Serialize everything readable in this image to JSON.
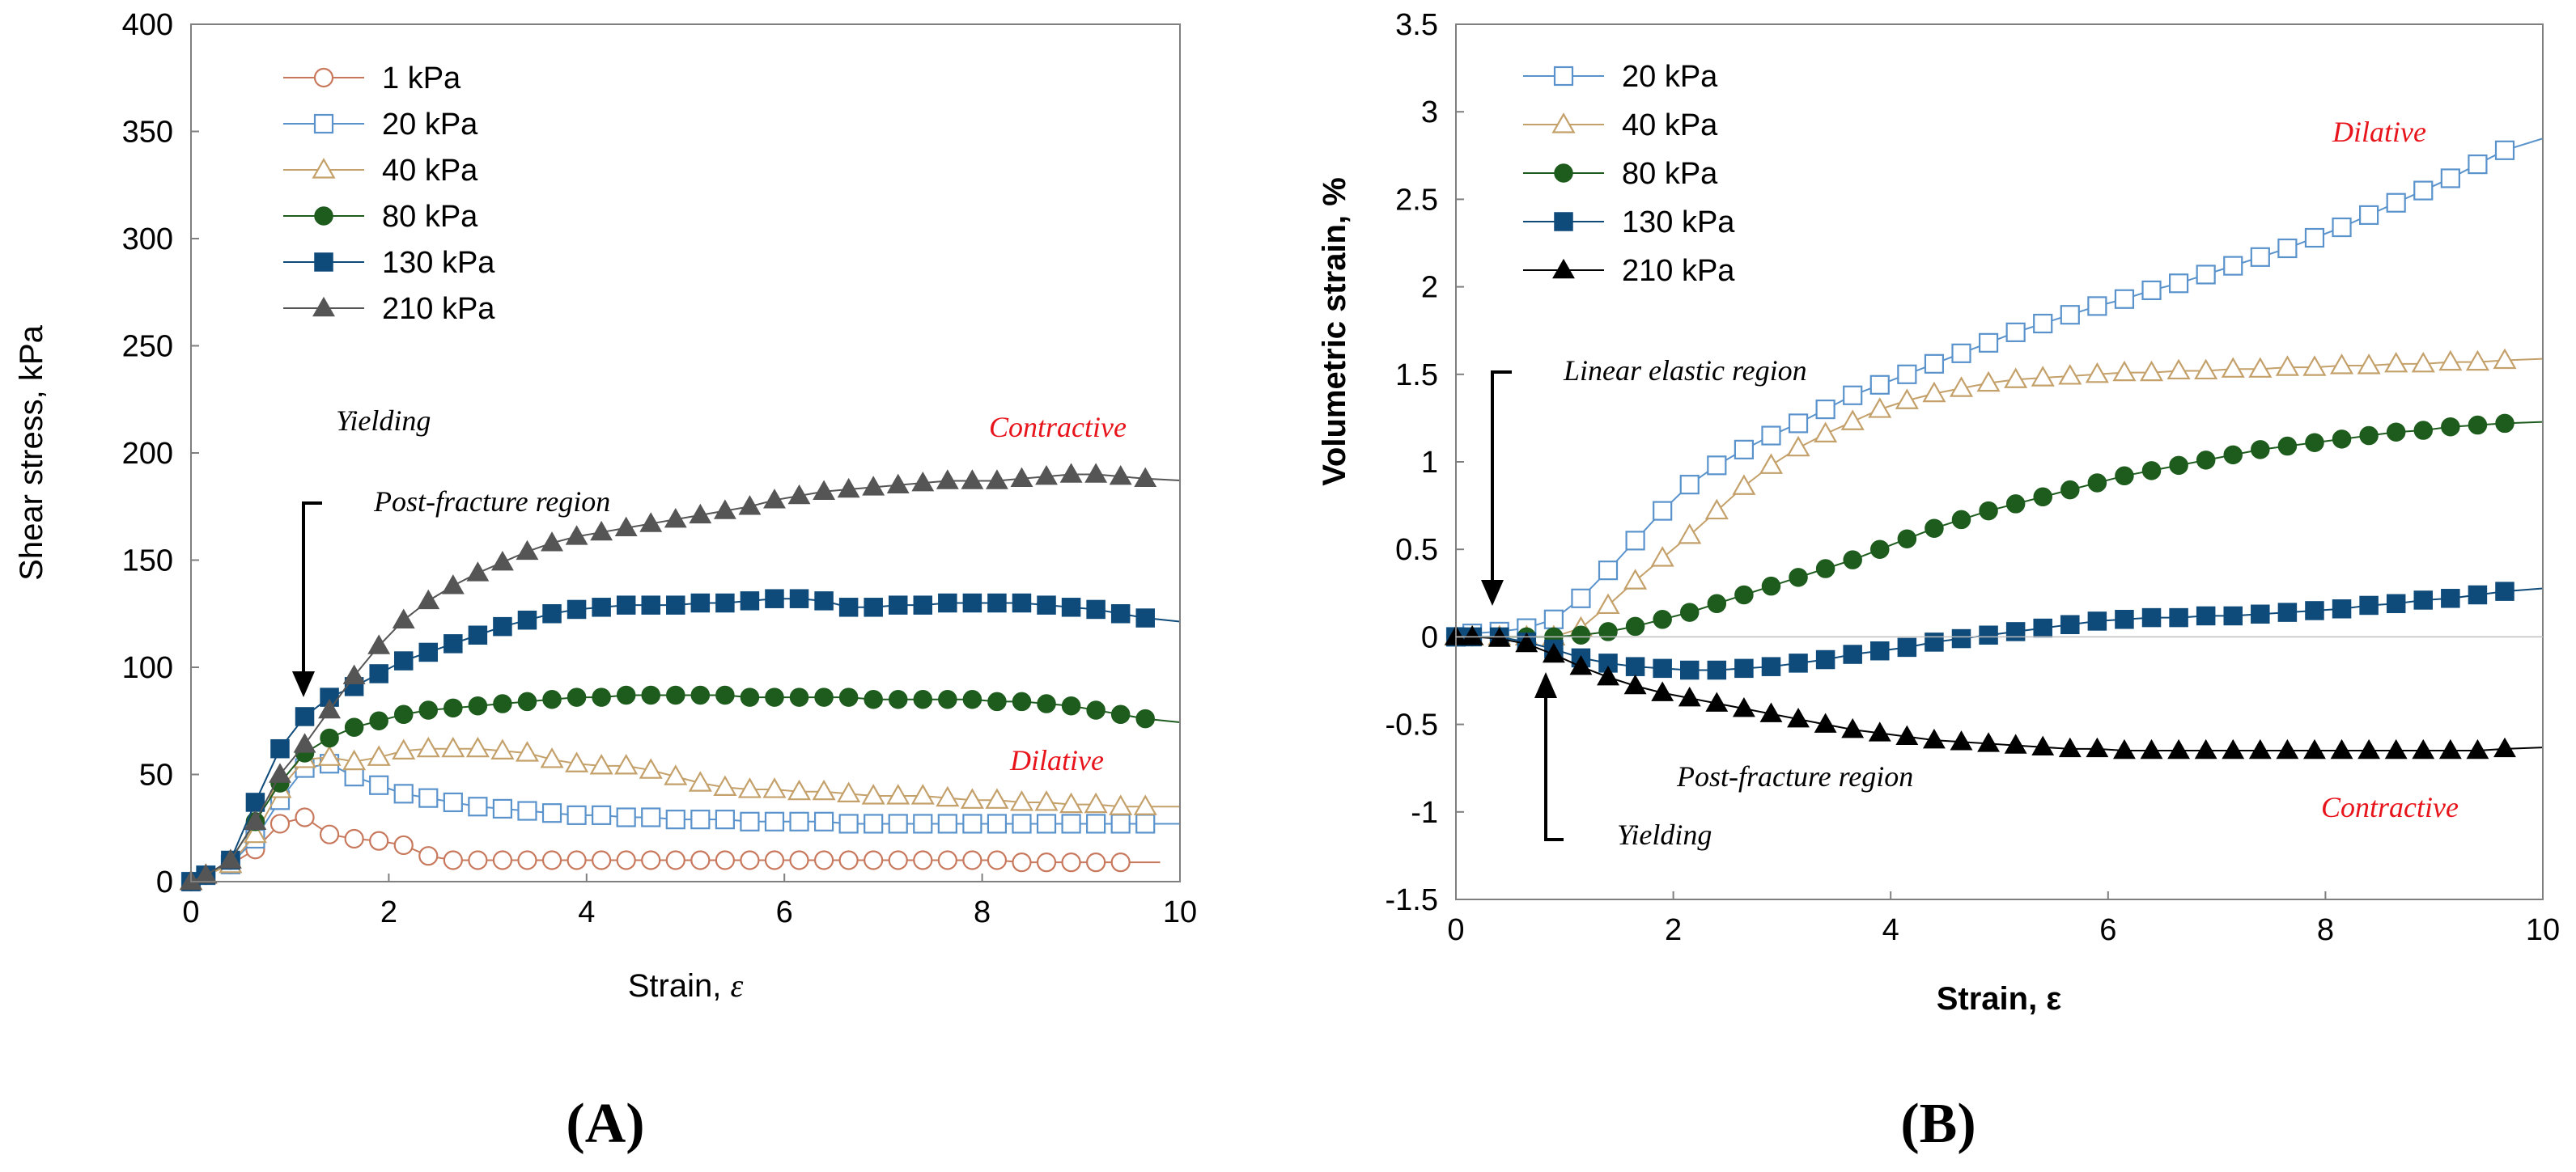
{
  "chart_data": [
    {
      "type": "line",
      "panel_label": "(A)",
      "title": "",
      "xlabel_prefix": "Strain, ",
      "xlabel_symbol": "ε",
      "ylabel": "Shear stress, kPa",
      "xlim": [
        0,
        10
      ],
      "ylim": [
        0,
        400
      ],
      "xticks": [
        0,
        2,
        4,
        6,
        8,
        10
      ],
      "yticks": [
        0,
        50,
        100,
        150,
        200,
        250,
        300,
        350,
        400
      ],
      "xtick_labels": [
        "0",
        "2",
        "4",
        "6",
        "8",
        "10"
      ],
      "ytick_labels": [
        "0",
        "50",
        "100",
        "150",
        "200",
        "250",
        "300",
        "350",
        "400"
      ],
      "grid": false,
      "legend_position": "top-left",
      "annotations": [
        {
          "text": "Yielding",
          "color": "#000000"
        },
        {
          "text": "Post-fracture region",
          "color": "#000000"
        },
        {
          "text": "Contractive",
          "color": "#e8141b"
        },
        {
          "text": "Dilative",
          "color": "#e8141b"
        }
      ],
      "series": [
        {
          "name": "1 kPa",
          "marker": "circle-open",
          "color": "#c8785c",
          "x": [
            0,
            0.15,
            0.4,
            0.65,
            0.9,
            1.15,
            1.4,
            1.65,
            1.9,
            2.15,
            2.4,
            2.65,
            2.9,
            3.15,
            3.4,
            3.65,
            3.9,
            4.15,
            4.4,
            4.65,
            4.9,
            5.15,
            5.4,
            5.65,
            5.9,
            6.15,
            6.4,
            6.65,
            6.9,
            7.15,
            7.4,
            7.65,
            7.9,
            8.15,
            8.4,
            8.65,
            8.9,
            9.15,
            9.4
          ],
          "y": [
            0,
            3,
            8,
            15,
            27,
            30,
            22,
            20,
            19,
            17,
            12,
            10,
            10,
            10,
            10,
            10,
            10,
            10,
            10,
            10,
            10,
            10,
            10,
            10,
            10,
            10,
            10,
            10,
            10,
            10,
            10,
            10,
            10,
            10,
            9,
            9,
            9,
            9,
            9
          ]
        },
        {
          "name": "20 kPa",
          "marker": "square-open",
          "color": "#5a93cc",
          "x": [
            0,
            0.15,
            0.4,
            0.65,
            0.9,
            1.15,
            1.4,
            1.65,
            1.9,
            2.15,
            2.4,
            2.65,
            2.9,
            3.15,
            3.4,
            3.65,
            3.9,
            4.15,
            4.4,
            4.65,
            4.9,
            5.15,
            5.4,
            5.65,
            5.9,
            6.15,
            6.4,
            6.65,
            6.9,
            7.15,
            7.4,
            7.65,
            7.9,
            8.15,
            8.4,
            8.65,
            8.9,
            9.15,
            9.4,
            9.65
          ],
          "y": [
            0,
            3,
            8,
            20,
            38,
            53,
            55,
            49,
            45,
            41,
            39,
            37,
            35,
            34,
            33,
            32,
            31,
            31,
            30,
            30,
            29,
            29,
            29,
            28,
            28,
            28,
            28,
            27,
            27,
            27,
            27,
            27,
            27,
            27,
            27,
            27,
            27,
            27,
            27,
            27
          ]
        },
        {
          "name": "40 kPa",
          "marker": "triangle-open",
          "color": "#c4a06a",
          "x": [
            0,
            0.15,
            0.4,
            0.65,
            0.9,
            1.15,
            1.4,
            1.65,
            1.9,
            2.15,
            2.4,
            2.65,
            2.9,
            3.15,
            3.4,
            3.65,
            3.9,
            4.15,
            4.4,
            4.65,
            4.9,
            5.15,
            5.4,
            5.65,
            5.9,
            6.15,
            6.4,
            6.65,
            6.9,
            7.15,
            7.4,
            7.65,
            7.9,
            8.15,
            8.4,
            8.65,
            8.9,
            9.15,
            9.4,
            9.65
          ],
          "y": [
            0,
            3,
            8,
            22,
            43,
            57,
            58,
            56,
            58,
            61,
            62,
            62,
            62,
            61,
            60,
            57,
            55,
            54,
            54,
            52,
            49,
            46,
            44,
            43,
            43,
            42,
            42,
            41,
            40,
            40,
            40,
            39,
            38,
            38,
            37,
            37,
            36,
            36,
            35,
            35
          ]
        },
        {
          "name": "80 kPa",
          "marker": "circle-filled",
          "color": "#1e5c1e",
          "x": [
            0,
            0.15,
            0.4,
            0.65,
            0.9,
            1.15,
            1.4,
            1.65,
            1.9,
            2.15,
            2.4,
            2.65,
            2.9,
            3.15,
            3.4,
            3.65,
            3.9,
            4.15,
            4.4,
            4.65,
            4.9,
            5.15,
            5.4,
            5.65,
            5.9,
            6.15,
            6.4,
            6.65,
            6.9,
            7.15,
            7.4,
            7.65,
            7.9,
            8.15,
            8.4,
            8.65,
            8.9,
            9.15,
            9.4,
            9.65
          ],
          "y": [
            0,
            3,
            10,
            28,
            46,
            60,
            67,
            72,
            75,
            78,
            80,
            81,
            82,
            83,
            84,
            85,
            86,
            86,
            87,
            87,
            87,
            87,
            87,
            86,
            86,
            86,
            86,
            86,
            85,
            85,
            85,
            85,
            85,
            84,
            84,
            83,
            82,
            80,
            78,
            76
          ]
        },
        {
          "name": "130 kPa",
          "marker": "square-filled",
          "color": "#0e4a7a",
          "x": [
            0,
            0.15,
            0.4,
            0.65,
            0.9,
            1.15,
            1.4,
            1.65,
            1.9,
            2.15,
            2.4,
            2.65,
            2.9,
            3.15,
            3.4,
            3.65,
            3.9,
            4.15,
            4.4,
            4.65,
            4.9,
            5.15,
            5.4,
            5.65,
            5.9,
            6.15,
            6.4,
            6.65,
            6.9,
            7.15,
            7.4,
            7.65,
            7.9,
            8.15,
            8.4,
            8.65,
            8.9,
            9.15,
            9.4,
            9.65
          ],
          "y": [
            0,
            3,
            10,
            37,
            62,
            77,
            86,
            91,
            97,
            103,
            107,
            111,
            115,
            119,
            122,
            125,
            127,
            128,
            129,
            129,
            129,
            130,
            130,
            131,
            132,
            132,
            131,
            128,
            128,
            129,
            129,
            130,
            130,
            130,
            130,
            129,
            128,
            127,
            125,
            123
          ]
        },
        {
          "name": "210 kPa",
          "marker": "triangle-filled",
          "color": "#555555",
          "x": [
            0,
            0.15,
            0.4,
            0.65,
            0.9,
            1.15,
            1.4,
            1.65,
            1.9,
            2.15,
            2.4,
            2.65,
            2.9,
            3.15,
            3.4,
            3.65,
            3.9,
            4.15,
            4.4,
            4.65,
            4.9,
            5.15,
            5.4,
            5.65,
            5.9,
            6.15,
            6.4,
            6.65,
            6.9,
            7.15,
            7.4,
            7.65,
            7.9,
            8.15,
            8.4,
            8.65,
            8.9,
            9.15,
            9.4,
            9.65
          ],
          "y": [
            0,
            3,
            10,
            28,
            50,
            64,
            80,
            96,
            110,
            122,
            131,
            138,
            144,
            149,
            154,
            158,
            161,
            163,
            165,
            167,
            169,
            171,
            173,
            175,
            178,
            180,
            182,
            183,
            184,
            185,
            186,
            187,
            187,
            187,
            188,
            189,
            190,
            190,
            189,
            188
          ]
        }
      ]
    },
    {
      "type": "line",
      "panel_label": "(B)",
      "title": "",
      "xlabel": "Strain, ε",
      "ylabel": "Volumetric strain, %",
      "xlim": [
        0,
        10
      ],
      "ylim": [
        -1.5,
        3.5
      ],
      "xticks": [
        0,
        2,
        4,
        6,
        8,
        10
      ],
      "yticks": [
        -1.5,
        -1,
        -0.5,
        0,
        0.5,
        1,
        1.5,
        2,
        2.5,
        3,
        3.5
      ],
      "xtick_labels": [
        "0",
        "2",
        "4",
        "6",
        "8",
        "10"
      ],
      "ytick_labels": [
        "-1.5",
        "-1",
        "-0.5",
        "0",
        "0.5",
        "1",
        "1.5",
        "2",
        "2.5",
        "3",
        "3.5"
      ],
      "grid": false,
      "legend_position": "top-left",
      "annotations": [
        {
          "text": "Linear elastic region",
          "color": "#000000"
        },
        {
          "text": "Dilative",
          "color": "#e8141b"
        },
        {
          "text": "Post-fracture region",
          "color": "#000000"
        },
        {
          "text": "Yielding",
          "color": "#000000"
        },
        {
          "text": "Contractive",
          "color": "#e8141b"
        }
      ],
      "series": [
        {
          "name": "20 kPa",
          "marker": "square-open",
          "color": "#5a93cc",
          "x": [
            0,
            0.15,
            0.4,
            0.65,
            0.9,
            1.15,
            1.4,
            1.65,
            1.9,
            2.15,
            2.4,
            2.65,
            2.9,
            3.15,
            3.4,
            3.65,
            3.9,
            4.15,
            4.4,
            4.65,
            4.9,
            5.15,
            5.4,
            5.65,
            5.9,
            6.15,
            6.4,
            6.65,
            6.9,
            7.15,
            7.4,
            7.65,
            7.9,
            8.15,
            8.4,
            8.65,
            8.9,
            9.15,
            9.4,
            9.65
          ],
          "y": [
            0,
            0.02,
            0.03,
            0.05,
            0.1,
            0.22,
            0.38,
            0.55,
            0.72,
            0.87,
            0.98,
            1.07,
            1.15,
            1.22,
            1.3,
            1.38,
            1.44,
            1.5,
            1.56,
            1.62,
            1.68,
            1.74,
            1.79,
            1.84,
            1.89,
            1.93,
            1.98,
            2.02,
            2.07,
            2.12,
            2.17,
            2.22,
            2.28,
            2.34,
            2.41,
            2.48,
            2.55,
            2.62,
            2.7,
            2.78
          ]
        },
        {
          "name": "40 kPa",
          "marker": "triangle-open",
          "color": "#c4a06a",
          "x": [
            0,
            0.15,
            0.4,
            0.65,
            0.9,
            1.15,
            1.4,
            1.65,
            1.9,
            2.15,
            2.4,
            2.65,
            2.9,
            3.15,
            3.4,
            3.65,
            3.9,
            4.15,
            4.4,
            4.65,
            4.9,
            5.15,
            5.4,
            5.65,
            5.9,
            6.15,
            6.4,
            6.65,
            6.9,
            7.15,
            7.4,
            7.65,
            7.9,
            8.15,
            8.4,
            8.65,
            8.9,
            9.15,
            9.4,
            9.65
          ],
          "y": [
            0,
            0.0,
            0.0,
            0.0,
            0.0,
            0.05,
            0.18,
            0.32,
            0.45,
            0.58,
            0.72,
            0.86,
            0.98,
            1.08,
            1.16,
            1.23,
            1.3,
            1.35,
            1.39,
            1.42,
            1.45,
            1.47,
            1.48,
            1.49,
            1.5,
            1.51,
            1.51,
            1.52,
            1.52,
            1.53,
            1.53,
            1.54,
            1.54,
            1.55,
            1.55,
            1.56,
            1.56,
            1.57,
            1.57,
            1.58
          ]
        },
        {
          "name": "80 kPa",
          "marker": "circle-filled",
          "color": "#1e5c1e",
          "x": [
            0,
            0.15,
            0.4,
            0.65,
            0.9,
            1.15,
            1.4,
            1.65,
            1.9,
            2.15,
            2.4,
            2.65,
            2.9,
            3.15,
            3.4,
            3.65,
            3.9,
            4.15,
            4.4,
            4.65,
            4.9,
            5.15,
            5.4,
            5.65,
            5.9,
            6.15,
            6.4,
            6.65,
            6.9,
            7.15,
            7.4,
            7.65,
            7.9,
            8.15,
            8.4,
            8.65,
            8.9,
            9.15,
            9.4,
            9.65
          ],
          "y": [
            0,
            0.0,
            0.0,
            0.0,
            0.0,
            0.01,
            0.03,
            0.06,
            0.1,
            0.14,
            0.19,
            0.24,
            0.29,
            0.34,
            0.39,
            0.44,
            0.5,
            0.56,
            0.62,
            0.67,
            0.72,
            0.76,
            0.8,
            0.84,
            0.88,
            0.92,
            0.95,
            0.98,
            1.01,
            1.04,
            1.07,
            1.09,
            1.11,
            1.13,
            1.15,
            1.17,
            1.18,
            1.2,
            1.21,
            1.22
          ]
        },
        {
          "name": "130 kPa",
          "marker": "square-filled",
          "color": "#0e4a7a",
          "x": [
            0,
            0.15,
            0.4,
            0.65,
            0.9,
            1.15,
            1.4,
            1.65,
            1.9,
            2.15,
            2.4,
            2.65,
            2.9,
            3.15,
            3.4,
            3.65,
            3.9,
            4.15,
            4.4,
            4.65,
            4.9,
            5.15,
            5.4,
            5.65,
            5.9,
            6.15,
            6.4,
            6.65,
            6.9,
            7.15,
            7.4,
            7.65,
            7.9,
            8.15,
            8.4,
            8.65,
            8.9,
            9.15,
            9.4,
            9.65
          ],
          "y": [
            0,
            0.0,
            0.0,
            -0.03,
            -0.07,
            -0.12,
            -0.15,
            -0.17,
            -0.18,
            -0.19,
            -0.19,
            -0.18,
            -0.17,
            -0.15,
            -0.13,
            -0.1,
            -0.08,
            -0.06,
            -0.03,
            -0.01,
            0.01,
            0.03,
            0.05,
            0.07,
            0.09,
            0.1,
            0.11,
            0.11,
            0.12,
            0.12,
            0.13,
            0.14,
            0.15,
            0.16,
            0.18,
            0.19,
            0.21,
            0.22,
            0.24,
            0.26
          ]
        },
        {
          "name": "210 kPa",
          "marker": "triangle-filled",
          "color": "#000000",
          "x": [
            0,
            0.15,
            0.4,
            0.65,
            0.9,
            1.15,
            1.4,
            1.65,
            1.9,
            2.15,
            2.4,
            2.65,
            2.9,
            3.15,
            3.4,
            3.65,
            3.9,
            4.15,
            4.4,
            4.65,
            4.9,
            5.15,
            5.4,
            5.65,
            5.9,
            6.15,
            6.4,
            6.65,
            6.9,
            7.15,
            7.4,
            7.65,
            7.9,
            8.15,
            8.4,
            8.65,
            8.9,
            9.15,
            9.4,
            9.65
          ],
          "y": [
            0,
            0.0,
            -0.01,
            -0.04,
            -0.1,
            -0.17,
            -0.23,
            -0.28,
            -0.32,
            -0.35,
            -0.38,
            -0.41,
            -0.44,
            -0.47,
            -0.5,
            -0.53,
            -0.55,
            -0.57,
            -0.59,
            -0.6,
            -0.61,
            -0.62,
            -0.63,
            -0.64,
            -0.64,
            -0.65,
            -0.65,
            -0.65,
            -0.65,
            -0.65,
            -0.65,
            -0.65,
            -0.65,
            -0.65,
            -0.65,
            -0.65,
            -0.65,
            -0.65,
            -0.65,
            -0.64
          ]
        }
      ]
    }
  ]
}
